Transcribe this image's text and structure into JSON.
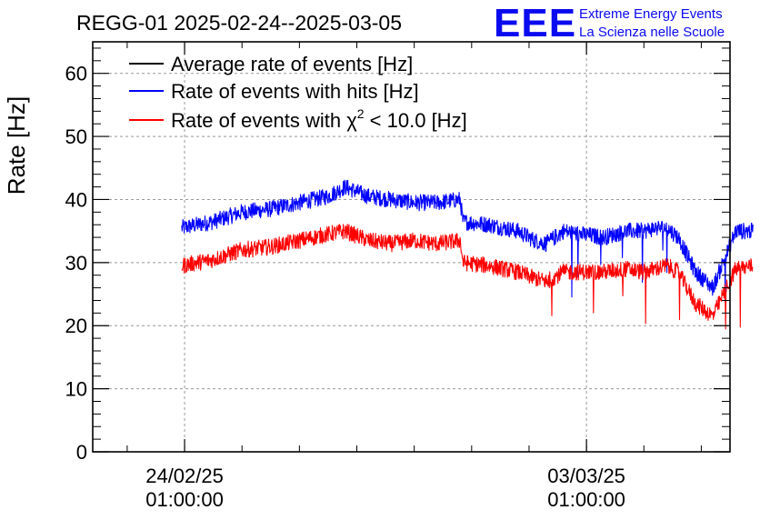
{
  "chart_data": {
    "type": "line",
    "title": "REGG-01 2025-02-24--2025-03-05",
    "ylabel": "Rate [Hz]",
    "xlabel": "",
    "ylim": [
      0,
      65
    ],
    "y_ticks": [
      0,
      10,
      20,
      30,
      40,
      50,
      60
    ],
    "x_range_days": [
      -1.6,
      9.5
    ],
    "x_ticks": [
      {
        "day": 0,
        "line1": "24/02/25",
        "line2": "01:00:00"
      },
      {
        "day": 7,
        "line1": "03/03/25",
        "line2": "01:00:00"
      }
    ],
    "grid": true,
    "legend_position": "top-left",
    "series": [
      {
        "name": "Average rate of events [Hz]",
        "color": "#000000",
        "x_days": [],
        "values": []
      },
      {
        "name": "Rate of events with hits [Hz]",
        "color": "#0000ff",
        "x_days": [
          -0.05,
          0.5,
          1.0,
          1.5,
          2.0,
          2.5,
          2.8,
          3.2,
          3.6,
          4.0,
          4.4,
          4.8,
          4.85,
          5.3,
          5.8,
          6.1,
          6.3,
          6.6,
          6.9,
          7.3,
          7.7,
          8.0,
          8.2,
          8.4,
          8.6,
          8.9,
          9.2,
          9.6,
          9.9
        ],
        "values": [
          35.5,
          36.5,
          38.0,
          38.5,
          39.5,
          40.5,
          42.0,
          40.5,
          40.0,
          39.5,
          39.5,
          40.0,
          36.5,
          36.0,
          35.0,
          33.5,
          33.0,
          35.0,
          34.5,
          34.0,
          35.0,
          35.0,
          35.5,
          35.5,
          34.0,
          28.5,
          26.0,
          35.0,
          35.0
        ]
      },
      {
        "name": "Rate of events with χ2 < 10.0 [Hz]",
        "label_main": "Rate of events with χ",
        "label_sup": "2",
        "label_rest": " < 10.0 [Hz]",
        "color": "#ff0000",
        "x_days": [
          -0.05,
          0.5,
          1.0,
          1.5,
          2.0,
          2.5,
          2.8,
          3.2,
          3.6,
          4.0,
          4.4,
          4.8,
          4.85,
          5.3,
          5.8,
          6.1,
          6.3,
          6.6,
          6.9,
          7.3,
          7.7,
          8.0,
          8.2,
          8.4,
          8.6,
          8.9,
          9.2,
          9.6,
          9.9
        ],
        "values": [
          29.5,
          30.5,
          32.0,
          32.5,
          33.5,
          34.5,
          35.0,
          33.5,
          33.0,
          33.5,
          33.0,
          33.5,
          30.0,
          29.5,
          28.5,
          27.5,
          27.0,
          28.5,
          28.5,
          28.5,
          29.0,
          28.5,
          29.0,
          29.5,
          28.5,
          23.5,
          21.5,
          29.0,
          29.5
        ]
      }
    ]
  },
  "logo": {
    "mark": "EEE",
    "line1": "Extreme Energy Events",
    "line2": "La Scienza nelle Scuole"
  }
}
